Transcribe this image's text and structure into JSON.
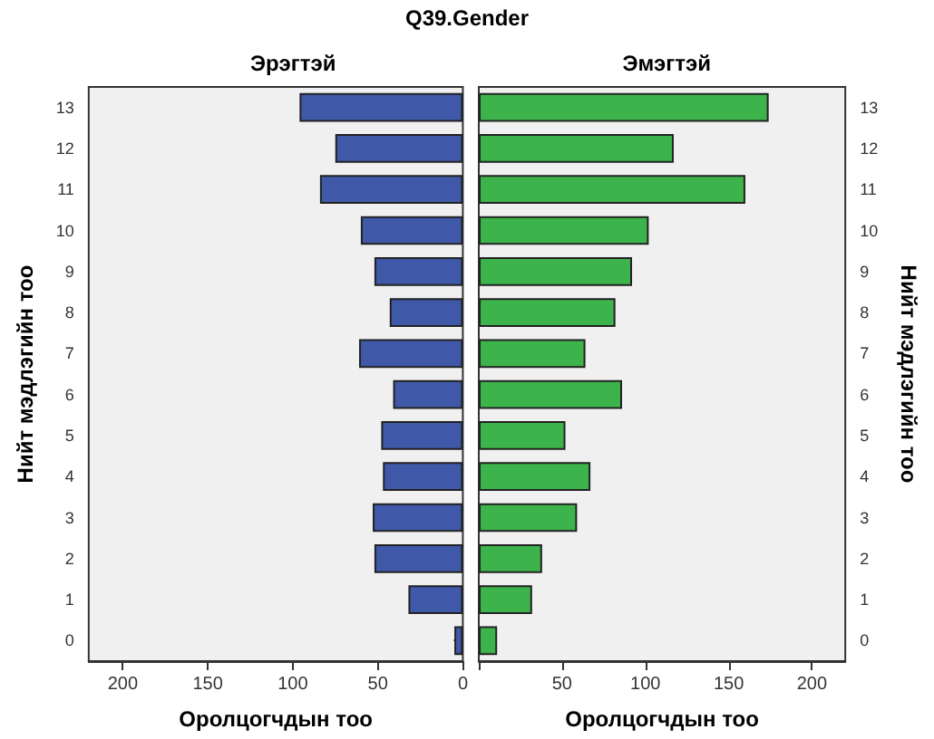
{
  "chart_data": [
    {
      "type": "bar",
      "orientation": "horizontal",
      "title": "Q39.Gender",
      "subtitle": "Эрэгтэй",
      "xlabel": "Оролцогчдын тоо",
      "ylabel": "Нийт мэдлэгийн тоо",
      "categories": [
        "13",
        "12",
        "11",
        "10",
        "9",
        "8",
        "7",
        "6",
        "5",
        "4",
        "3",
        "2",
        "1",
        "0"
      ],
      "series": [
        {
          "color": "#3f58a8",
          "values": [
            96,
            75,
            84,
            60,
            52,
            43,
            61,
            41,
            48,
            47,
            53,
            52,
            32,
            5
          ]
        }
      ],
      "xlim": [
        220,
        0
      ],
      "xticks": [
        200,
        150,
        100,
        50,
        0
      ],
      "grid": false
    },
    {
      "type": "bar",
      "orientation": "horizontal",
      "subtitle": "Эмэгтэй",
      "xlabel": "Оролцогчдын тоо",
      "y2label": "Нийт мэдлэгийн тоо",
      "categories": [
        "13",
        "12",
        "11",
        "10",
        "9",
        "8",
        "7",
        "6",
        "5",
        "4",
        "3",
        "2",
        "1",
        "0"
      ],
      "series": [
        {
          "color": "#3cb44b",
          "values": [
            174,
            117,
            160,
            102,
            92,
            82,
            64,
            86,
            52,
            67,
            59,
            38,
            32,
            11
          ]
        }
      ],
      "xlim": [
        0,
        220
      ],
      "xticks": [
        {
          "value": 0,
          "label": null
        },
        50,
        100,
        150,
        200
      ],
      "grid": false
    }
  ]
}
